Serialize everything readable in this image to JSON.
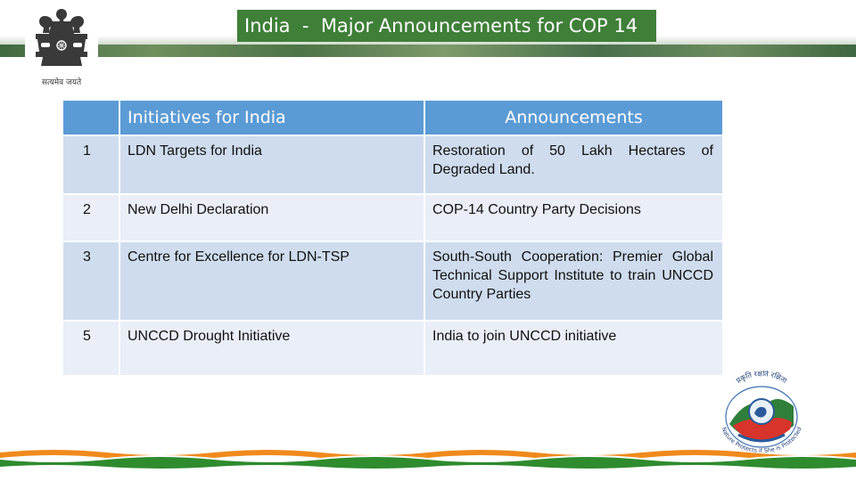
{
  "header": {
    "title": "India  -  Major Announcements for COP 14",
    "emblem_caption": "सत्यमेव जयते"
  },
  "table": {
    "headers": [
      "",
      "Initiatives for India",
      "Announcements"
    ],
    "rows": [
      {
        "num": "1",
        "initiative": "LDN Targets for India",
        "announcement": "Restoration of 50 Lakh Hectares of Degraded Land."
      },
      {
        "num": "2",
        "initiative": "New Delhi Declaration",
        "announcement": "COP-14 Country Party Decisions"
      },
      {
        "num": "3",
        "initiative": "Centre for Excellence for LDN-TSP",
        "announcement": "South-South Cooperation: Premier Global Technical Support Institute to train UNCCD Country Parties"
      },
      {
        "num": "5",
        "initiative": "UNCCD Drought Initiative",
        "announcement": "India to join UNCCD initiative"
      }
    ]
  },
  "logo": {
    "top_text": "प्रकृति रक्षति रक्षिता",
    "bottom_text": "Nature Protects if She is Protected"
  },
  "colors": {
    "title_bg": "#3f7f38",
    "header_bg": "#5b9bd5",
    "row_dark": "#cfdcee",
    "row_light": "#e9eef7",
    "saffron": "#f08a1c",
    "green": "#2e8b2e"
  }
}
